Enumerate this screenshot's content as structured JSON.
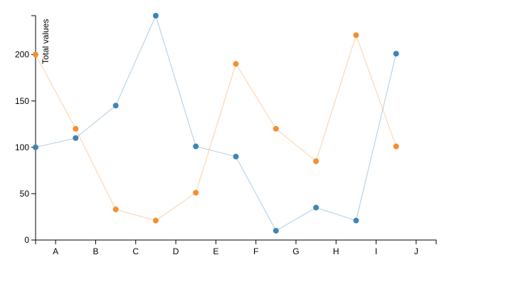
{
  "chart_data": {
    "type": "line",
    "y_label": "Total values",
    "categories": [
      "A",
      "B",
      "C",
      "D",
      "E",
      "F",
      "G",
      "H",
      "I",
      "J"
    ],
    "series": [
      {
        "color": "#3d85b8",
        "values": [
          100,
          110,
          145,
          242,
          101,
          90,
          10,
          35,
          21,
          201
        ]
      },
      {
        "color": "#f58f2f",
        "values": [
          200,
          120,
          33,
          21,
          51,
          190,
          120,
          85,
          221,
          101
        ]
      }
    ],
    "ylim": [
      0,
      242
    ],
    "yticks": [
      0,
      50,
      100,
      150,
      200
    ]
  }
}
